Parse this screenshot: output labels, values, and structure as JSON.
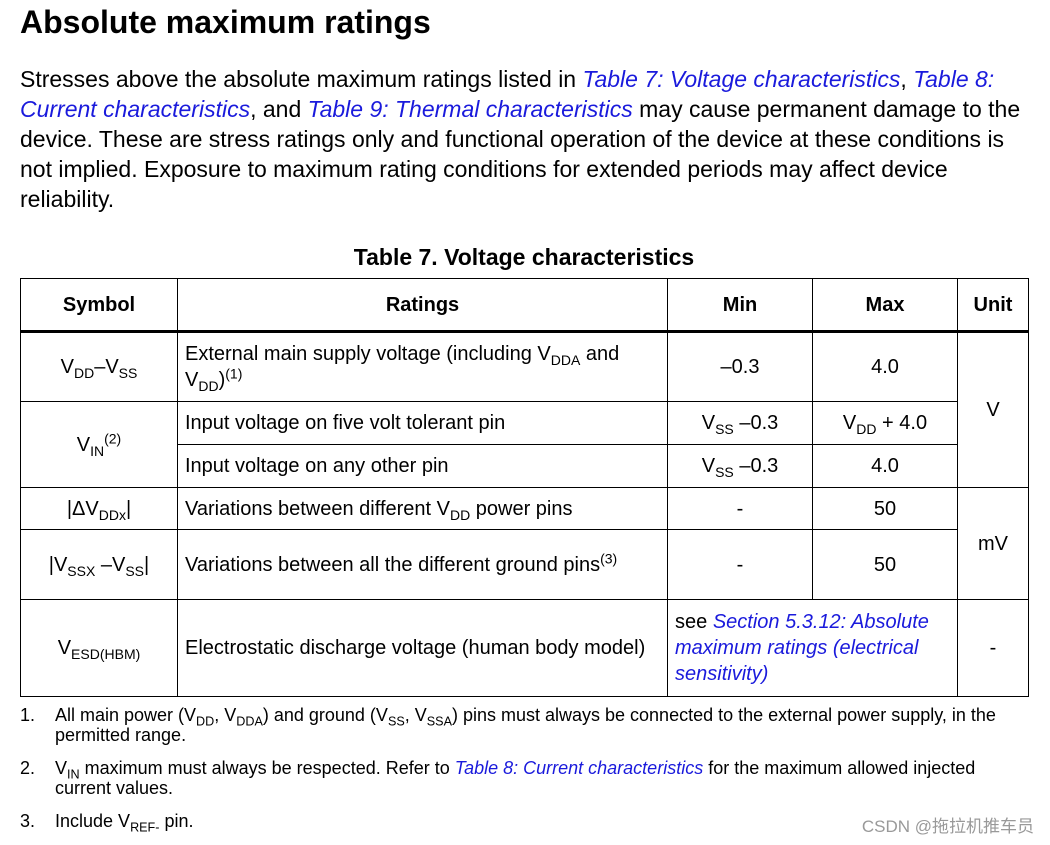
{
  "title": "Absolute maximum ratings",
  "intro": [
    "Stresses above the absolute maximum ratings listed in ",
    {
      "link": "Table 7: Voltage characteristics"
    },
    ", ",
    {
      "link": "Table 8: Current characteristics"
    },
    ", and ",
    {
      "link": "Table 9: Thermal characteristics"
    },
    " may cause permanent damage to the device. These are stress ratings only and functional operation of the device at these conditions is not implied. Exposure to maximum rating conditions for extended periods may affect device reliability."
  ],
  "table": {
    "caption": "Table 7. Voltage characteristics",
    "header": [
      "Symbol",
      "Ratings",
      "Min",
      "Max",
      "Unit"
    ],
    "rows": [
      [
        [
          "V",
          {
            "sub": "DD"
          },
          "–V",
          {
            "sub": "SS"
          }
        ],
        [
          "External main supply voltage (including V",
          {
            "sub": "DDA"
          },
          " and V",
          {
            "sub": "DD"
          },
          ")",
          {
            "sup": "(1)"
          }
        ],
        [
          "–0.3"
        ],
        [
          "4.0"
        ],
        [
          "V"
        ]
      ],
      [
        [
          "V",
          {
            "sub": "IN"
          },
          {
            "sup": "(2)"
          }
        ],
        [
          "Input voltage on five volt tolerant pin"
        ],
        [
          "V",
          {
            "sub": "SS"
          },
          " –0.3"
        ],
        [
          "V",
          {
            "sub": "DD"
          },
          " + 4.0"
        ]
      ],
      [
        [
          "Input voltage on any other pin"
        ],
        [
          "V",
          {
            "sub": "SS"
          },
          " –0.3"
        ],
        [
          "4.0"
        ]
      ],
      [
        [
          "|ΔV",
          {
            "sub": "DDx"
          },
          "|"
        ],
        [
          "Variations between different V",
          {
            "sub": "DD"
          },
          " power pins"
        ],
        [
          "-"
        ],
        [
          "50"
        ],
        [
          "mV"
        ]
      ],
      [
        [
          "|V",
          {
            "sub": "SSX"
          },
          " –V",
          {
            "sub": "SS"
          },
          "|"
        ],
        [
          "Variations between all the different ground pins",
          {
            "sup": "(3)"
          }
        ],
        [
          "-"
        ],
        [
          "50"
        ]
      ],
      [
        [
          "V",
          {
            "sub": "ESD(HBM)"
          }
        ],
        [
          "Electrostatic discharge voltage (human body model)"
        ],
        [
          "see ",
          {
            "link": "Section 5.3.12: Absolute maximum ratings (electrical sensitivity)"
          }
        ],
        [
          "-"
        ]
      ]
    ]
  },
  "notes": [
    {
      "number": "1.",
      "text": [
        "All main power (V",
        {
          "sub": "DD"
        },
        ", V",
        {
          "sub": "DDA"
        },
        ") and ground (V",
        {
          "sub": "SS"
        },
        ", V",
        {
          "sub": "SSA"
        },
        ") pins must always be connected to the external power supply, in the permitted range."
      ]
    },
    {
      "number": "2.",
      "text": [
        "V",
        {
          "sub": "IN"
        },
        " maximum must always be respected. Refer to ",
        {
          "link": "Table 8: Current characteristics"
        },
        " for the maximum allowed injected current values."
      ]
    },
    {
      "number": "3.",
      "text": [
        "Include V",
        {
          "sub": "REF-"
        },
        " pin."
      ]
    }
  ],
  "watermark": "CSDN @拖拉机推车员"
}
